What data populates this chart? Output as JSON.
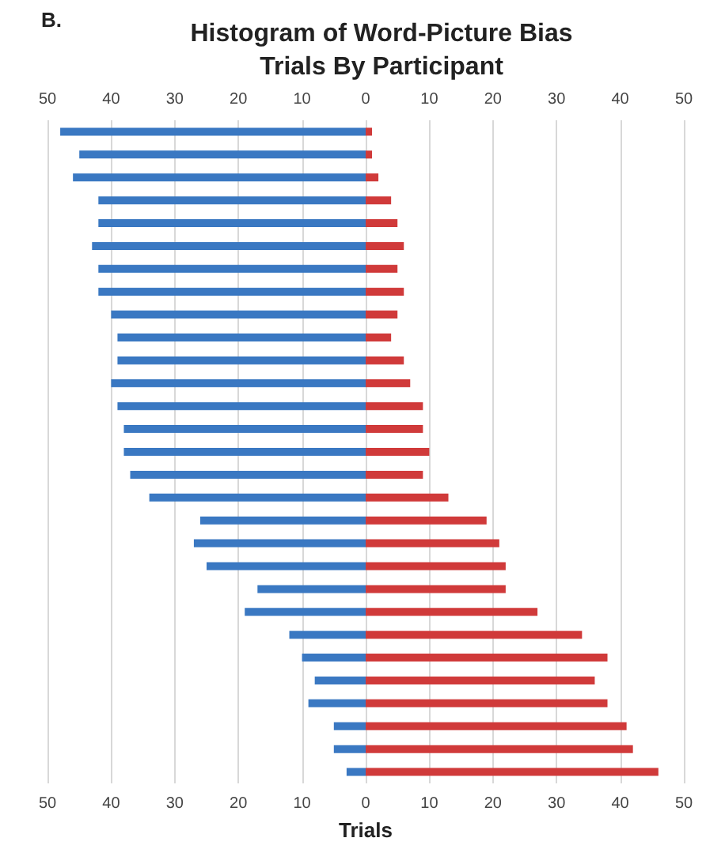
{
  "chart_data": {
    "type": "bar",
    "orientation": "horizontal",
    "title": "Histogram of Word-Picture Bias\nTrials By Participant",
    "xlabel": "Trials",
    "annotations": [
      "B."
    ],
    "categories": [
      null,
      null,
      null,
      null,
      null,
      null,
      null,
      null,
      null,
      null,
      null,
      null,
      null,
      null,
      null,
      null,
      null,
      null,
      null,
      null,
      null,
      null,
      null,
      null,
      null,
      null,
      null,
      null,
      null
    ],
    "series": [
      {
        "color": "#3a78c2",
        "values": [
          -48,
          -45,
          -46,
          -42,
          -42,
          -43,
          -42,
          -42,
          -40,
          -39,
          -39,
          -40,
          -39,
          -38,
          -38,
          -37,
          -34,
          -26,
          -27,
          -25,
          -17,
          -19,
          -12,
          -10,
          -8,
          -9,
          -5,
          -5,
          -3
        ]
      },
      {
        "color": "#d03a3a",
        "values": [
          1,
          1,
          2,
          4,
          5,
          6,
          5,
          6,
          5,
          4,
          6,
          7,
          9,
          9,
          10,
          9,
          13,
          19,
          21,
          22,
          22,
          27,
          34,
          38,
          36,
          38,
          41,
          42,
          46
        ]
      }
    ],
    "xlim": [
      -50,
      50
    ],
    "xticks": [
      {
        "value": -50,
        "label": "50"
      },
      {
        "value": -40,
        "label": "40"
      },
      {
        "value": -30,
        "label": "30"
      },
      {
        "value": -20,
        "label": "20"
      },
      {
        "value": -10,
        "label": "10"
      },
      0,
      10,
      20,
      30,
      40,
      50
    ],
    "x2lim": [
      -50,
      50
    ],
    "x2ticks": [
      {
        "value": -50,
        "label": "50"
      },
      {
        "value": -40,
        "label": "40"
      },
      {
        "value": -30,
        "label": "30"
      },
      {
        "value": -20,
        "label": "20"
      },
      {
        "value": -10,
        "label": "10"
      },
      0,
      10,
      20,
      30,
      40,
      50
    ],
    "grid": "x",
    "tick_labels": "x",
    "stacked": true
  }
}
